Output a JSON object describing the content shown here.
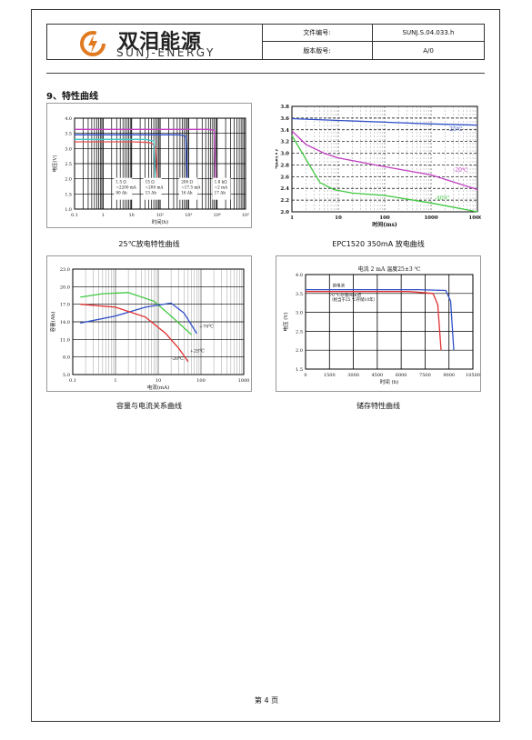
{
  "header": {
    "logo_cn": "双泪能源",
    "logo_en": "SUNJ-ENERGY",
    "doc_no_label": "文件编号:",
    "doc_no_value": "SUNJ.S.04.033.h",
    "version_label": "版本版号:",
    "version_value": "A/0"
  },
  "section_title": "9、特性曲线",
  "captions": {
    "c1": "25℃放电特性曲线",
    "c2": "EPC1520   350mA 放电曲线",
    "c3": "容量与电流关系曲线",
    "c4": "储存特性曲线"
  },
  "footer": {
    "page": "第 4 页"
  },
  "chart_data": [
    {
      "type": "line",
      "title": "",
      "xlabel": "时间(h)",
      "ylabel": "电压(V)",
      "x_scale": "log",
      "xlim": [
        0.1,
        100000
      ],
      "ylim": [
        1.0,
        4.0
      ],
      "x_ticks": [
        "0.1",
        "1",
        "10",
        "10²",
        "10³",
        "10⁴",
        "10⁵"
      ],
      "y_ticks": [
        "1.0",
        "1.5",
        "2.0",
        "2.5",
        "3.0",
        "3.5",
        "4.0"
      ],
      "annotations": [
        [
          "1.5 Ω",
          "~2200 mA",
          "80 Ah"
        ],
        [
          "15 Ω",
          "~200 mA",
          "13 Ah"
        ],
        [
          "200 Ω",
          "~17.5 mA",
          "16 Ah"
        ],
        [
          "1.8 kΩ",
          "~2 mA",
          "17 Ah"
        ]
      ],
      "series": [
        {
          "color": "#e65050",
          "x": [
            0.1,
            10,
            40,
            55,
            70,
            80
          ],
          "y": [
            3.22,
            3.22,
            3.2,
            3.15,
            3.0,
            2.0
          ]
        },
        {
          "color": "#40c8c8",
          "x": [
            0.1,
            30,
            60,
            70
          ],
          "y": [
            3.3,
            3.3,
            3.25,
            2.0
          ]
        },
        {
          "color": "#3050c8",
          "x": [
            0.1,
            500,
            800,
            900
          ],
          "y": [
            3.45,
            3.45,
            3.4,
            2.0
          ]
        },
        {
          "color": "#c040c0",
          "x": [
            0.1,
            5000,
            8000,
            9000
          ],
          "y": [
            3.63,
            3.63,
            3.6,
            2.0
          ]
        }
      ]
    },
    {
      "type": "line",
      "title": "",
      "xlabel": "时间(ms)",
      "ylabel": "电压(V)",
      "x_scale": "log",
      "xlim": [
        1,
        10000
      ],
      "ylim": [
        2.0,
        3.8
      ],
      "x_ticks": [
        "1",
        "10",
        "100",
        "1000",
        "10000"
      ],
      "y_ticks": [
        "2.0",
        "2.2",
        "2.4",
        "2.6",
        "2.8",
        "3.0",
        "3.2",
        "3.4",
        "3.6",
        "3.8"
      ],
      "series": [
        {
          "name": "25℃",
          "color": "#3050c8",
          "x": [
            1,
            10,
            100,
            1000,
            10000
          ],
          "y": [
            3.59,
            3.56,
            3.53,
            3.5,
            3.48
          ]
        },
        {
          "name": "-20℃",
          "color": "#c040c0",
          "x": [
            1,
            2,
            5,
            10,
            100,
            1000,
            10000
          ],
          "y": [
            3.38,
            3.15,
            3.0,
            2.92,
            2.77,
            2.63,
            2.38
          ]
        },
        {
          "name": "-40℃",
          "color": "#40c840",
          "x": [
            1,
            2,
            4,
            8,
            20,
            100,
            1000,
            10000
          ],
          "y": [
            3.3,
            2.9,
            2.5,
            2.38,
            2.32,
            2.28,
            2.15,
            2.0
          ]
        }
      ]
    },
    {
      "type": "line",
      "title": "",
      "xlabel": "电流(mA)",
      "ylabel": "容量(Ah)",
      "x_scale": "log",
      "xlim": [
        0.1,
        1000
      ],
      "ylim": [
        5.0,
        23.0
      ],
      "x_ticks": [
        "0.1",
        "1",
        "10",
        "100",
        "1000"
      ],
      "y_ticks": [
        "5.0",
        "8.0",
        "11.0",
        "14.0",
        "17.0",
        "20.0",
        "23.0"
      ],
      "series": [
        {
          "name": "+70℃",
          "color": "#40c840",
          "x": [
            0.15,
            0.5,
            2,
            8,
            20,
            60
          ],
          "y": [
            18.2,
            18.8,
            19.0,
            17.5,
            15.0,
            11.8
          ]
        },
        {
          "name": "+25℃",
          "color": "#3050c8",
          "x": [
            0.15,
            1,
            5,
            20,
            40,
            80
          ],
          "y": [
            13.8,
            15.0,
            16.5,
            17.2,
            15.5,
            12.0
          ]
        },
        {
          "name": "-20℃",
          "color": "#e03030",
          "x": [
            0.15,
            1,
            5,
            15,
            30,
            50
          ],
          "y": [
            17.0,
            16.5,
            14.8,
            12.0,
            9.5,
            7.2
          ]
        }
      ]
    },
    {
      "type": "line",
      "title": "电流 2 mA  温度25±3 ℃",
      "xlabel": "时间 (h)",
      "ylabel": "电压 (V)",
      "xlim": [
        0,
        10500
      ],
      "ylim": [
        1.5,
        4.0
      ],
      "x_ticks": [
        "0",
        "1500",
        "3000",
        "4500",
        "6000",
        "7500",
        "9000",
        "10500"
      ],
      "y_ticks": [
        "1.5",
        "2.0",
        "2.5",
        "3.0",
        "3.5",
        "4.0"
      ],
      "annotations": [
        "新电池",
        "70 ℃存储90天后",
        "（相当于25 ℃存储10年）"
      ],
      "series": [
        {
          "name": "新电池",
          "color": "#3050c8",
          "x": [
            0,
            7000,
            8800,
            9100,
            9300
          ],
          "y": [
            3.6,
            3.6,
            3.58,
            3.3,
            2.0
          ]
        },
        {
          "name": "70 ℃存储90天后",
          "color": "#e03030",
          "x": [
            0,
            6500,
            8000,
            8300,
            8500
          ],
          "y": [
            3.55,
            3.55,
            3.5,
            3.2,
            2.0
          ]
        }
      ]
    }
  ]
}
